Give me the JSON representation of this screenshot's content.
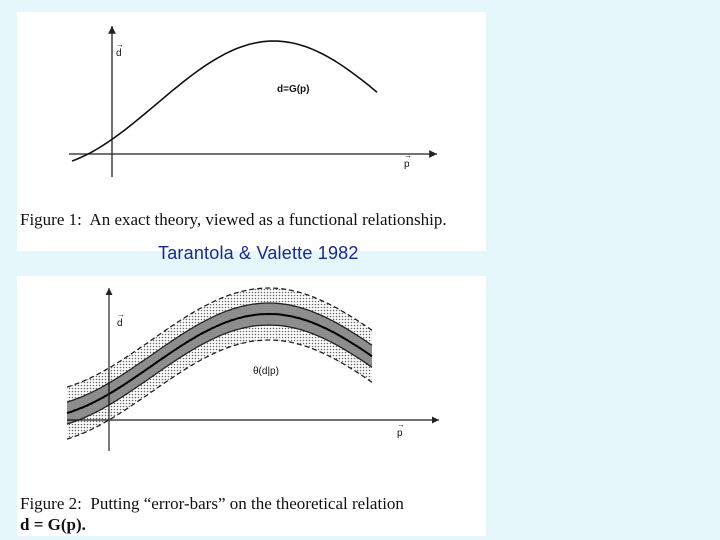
{
  "figure1": {
    "axis_d": "d",
    "axis_p": "p",
    "curve_label": "d=G(p)",
    "caption_label": "Figure 1:",
    "caption_text": "An exact theory, viewed as a functional relationship."
  },
  "credit": "Tarantola & Valette 1982",
  "figure2": {
    "axis_d": "d",
    "axis_p": "p",
    "curve_label": "θ(d|p)",
    "caption_label": "Figure 2:",
    "caption_text": "Putting “error-bars” on the theoretical relation",
    "caption_eq": "d = G(p)."
  }
}
